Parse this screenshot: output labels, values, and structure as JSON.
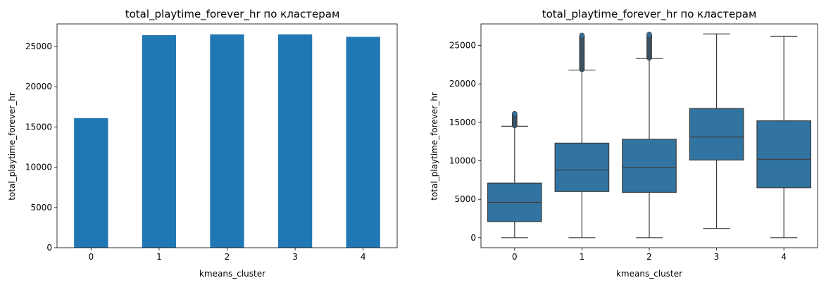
{
  "chart_data": [
    {
      "type": "bar",
      "title": "total_playtime_forever_hr по кластерам",
      "xlabel": "kmeans_cluster",
      "ylabel": "total_playtime_forever_hr",
      "categories": [
        "0",
        "1",
        "2",
        "3",
        "4"
      ],
      "values": [
        16100,
        26400,
        26500,
        26500,
        26200
      ],
      "ylim": [
        0,
        27800
      ],
      "yticks": [
        0,
        5000,
        10000,
        15000,
        20000,
        25000
      ],
      "grid": false,
      "color": "#1f77b4"
    },
    {
      "type": "box",
      "title": "total_playtime_forever_hr по кластерам",
      "xlabel": "kmeans_cluster",
      "ylabel": "total_playtime_forever_hr",
      "categories": [
        "0",
        "1",
        "2",
        "3",
        "4"
      ],
      "boxes": [
        {
          "whisker_low": 0,
          "q1": 2100,
          "median": 4600,
          "q3": 7100,
          "whisker_high": 14500,
          "outliers_from": 14600,
          "outliers_to": 16200
        },
        {
          "whisker_low": 0,
          "q1": 6000,
          "median": 8800,
          "q3": 12300,
          "whisker_high": 21800,
          "outliers_from": 21900,
          "outliers_to": 26400
        },
        {
          "whisker_low": 0,
          "q1": 5900,
          "median": 9100,
          "q3": 12800,
          "whisker_high": 23300,
          "outliers_from": 23400,
          "outliers_to": 26500
        },
        {
          "whisker_low": 1200,
          "q1": 10100,
          "median": 13100,
          "q3": 16800,
          "whisker_high": 26500,
          "outliers_from": null,
          "outliers_to": null
        },
        {
          "whisker_low": 0,
          "q1": 6500,
          "median": 10200,
          "q3": 15200,
          "whisker_high": 26200,
          "outliers_from": null,
          "outliers_to": null
        }
      ],
      "ylim": [
        -1300,
        27800
      ],
      "yticks": [
        0,
        5000,
        10000,
        15000,
        20000,
        25000
      ],
      "grid": false,
      "color": "#3274a1"
    }
  ]
}
